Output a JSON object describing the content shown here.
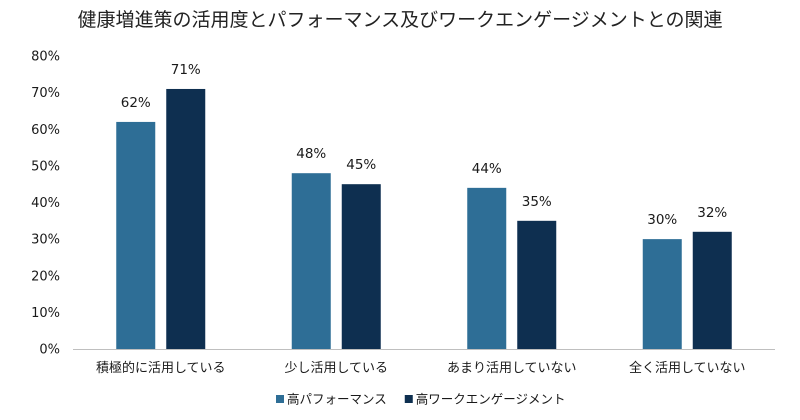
{
  "chart_data": {
    "type": "bar",
    "title": "健康増進策の活用度とパフォーマンス及びワークエンゲージメントとの関連",
    "xlabel": "",
    "ylabel": "",
    "categories": [
      "積極的に活用している",
      "少し活用している",
      "あまり活用していない",
      "全く活用していない"
    ],
    "series": [
      {
        "name": "高パフォーマンス",
        "color": "#2E6E96",
        "values": [
          62,
          48,
          44,
          30
        ],
        "labels": [
          "62%",
          "48%",
          "44%",
          "30%"
        ]
      },
      {
        "name": "高ワークエンゲージメント",
        "color": "#0E2F50",
        "values": [
          71,
          45,
          35,
          32
        ],
        "labels": [
          "71%",
          "45%",
          "35%",
          "32%"
        ]
      }
    ],
    "ylim": [
      0,
      80
    ],
    "y_ticks": [
      0,
      10,
      20,
      30,
      40,
      50,
      60,
      70,
      80
    ],
    "y_tick_labels": [
      "0%",
      "10%",
      "20%",
      "30%",
      "40%",
      "50%",
      "60%",
      "70%",
      "80%"
    ],
    "grid": false,
    "legend_position": "bottom",
    "colors": {
      "axis": "#bfbfbf",
      "text": "#1a1a1a",
      "background": "#ffffff"
    }
  }
}
